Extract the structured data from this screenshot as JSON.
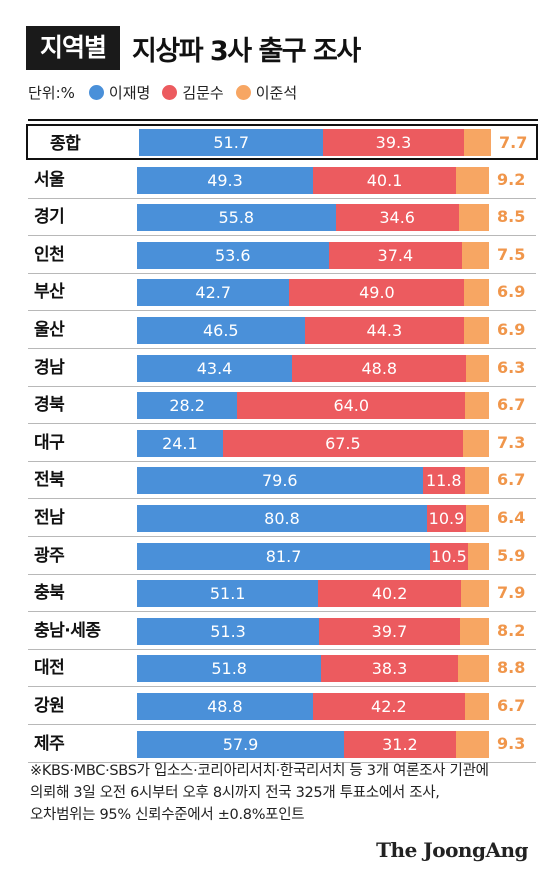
{
  "header": {
    "tag": "지역별",
    "title": "지상파 3사 출구 조사"
  },
  "legend": {
    "unit": "단위:%"
  },
  "colors": {
    "lee_jm": "#4a90d9",
    "kim_ms": "#ec5b5f",
    "lee_js": "#f7a663"
  },
  "chart_data": {
    "type": "bar",
    "orientation": "horizontal-stacked",
    "series": [
      {
        "name": "이재명",
        "values": [
          51.7,
          49.3,
          55.8,
          53.6,
          42.7,
          46.5,
          43.4,
          28.2,
          24.1,
          79.6,
          80.8,
          81.7,
          51.1,
          51.3,
          51.8,
          48.8,
          57.9
        ]
      },
      {
        "name": "김문수",
        "values": [
          39.3,
          40.1,
          34.6,
          37.4,
          49.0,
          44.3,
          48.8,
          64.0,
          67.5,
          11.8,
          10.9,
          10.5,
          40.2,
          39.7,
          38.3,
          42.2,
          31.2
        ]
      },
      {
        "name": "이준석",
        "values": [
          7.7,
          9.2,
          8.5,
          7.5,
          6.9,
          6.9,
          6.3,
          6.7,
          7.3,
          6.7,
          6.4,
          5.9,
          7.9,
          8.2,
          8.8,
          6.7,
          9.3
        ]
      }
    ],
    "categories": [
      "종합",
      "서울",
      "경기",
      "인천",
      "부산",
      "울산",
      "경남",
      "경북",
      "대구",
      "전북",
      "전남",
      "광주",
      "충북",
      "충남·세종",
      "대전",
      "강원",
      "제주"
    ],
    "title": "지상파 3사 출구 조사",
    "xlabel": "",
    "ylabel": ""
  },
  "footnote": {
    "lines": [
      "※KBS·MBC·SBS가 입소스·코리아리서치·한국리서치 등 3개 여론조사 기관에",
      "의뢰해 3일 오전 6시부터 오후 8시까지 전국 325개 투표소에서 조사,",
      "오차범위는 95% 신뢰수준에서 ±0.8%포인트"
    ]
  },
  "brand": {
    "logo": "The JoongAng"
  }
}
